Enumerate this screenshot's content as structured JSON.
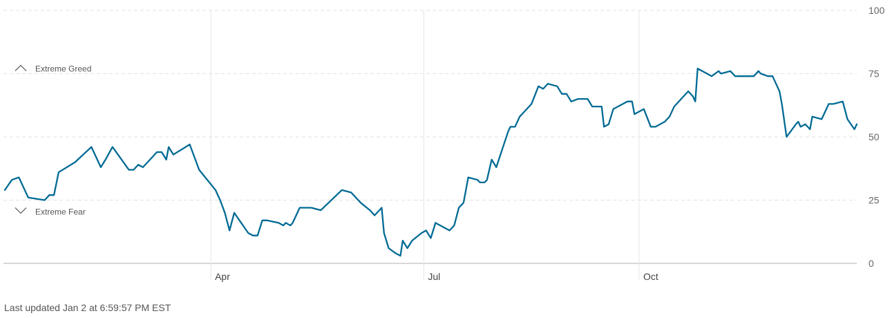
{
  "colors": {
    "line": "#006a94",
    "grid": "#e2e2e2",
    "vgrid": "#e6e6e6",
    "baseline": "#d8d8d8"
  },
  "footer": {
    "updated": "Last updated Jan 2 at 6:59:57 PM EST"
  },
  "chart_data": {
    "type": "line",
    "title": "",
    "xlabel": "",
    "ylabel": "",
    "ylim": [
      0,
      100
    ],
    "yticks": [
      0,
      25,
      50,
      75,
      100
    ],
    "y_axis_side": "right",
    "grid": "horizontal dashed, vertical at month labels",
    "xticks": [
      {
        "label": "Apr",
        "date": "2023-04-01"
      },
      {
        "label": "Jul",
        "date": "2023-07-01"
      },
      {
        "label": "Oct",
        "date": "2023-10-01"
      }
    ],
    "x_range": [
      "2023-01-03",
      "2024-01-02"
    ],
    "annotations": [
      {
        "label": "Extreme Greed",
        "icon": "chevron-up-icon",
        "value": 75
      },
      {
        "label": "Extreme Fear",
        "icon": "chevron-down-icon",
        "value": 25
      }
    ],
    "series": [
      {
        "values": [
          [
            "2023-01-03",
            29
          ],
          [
            "2023-01-06",
            33
          ],
          [
            "2023-01-09",
            34
          ],
          [
            "2023-01-13",
            26
          ],
          [
            "2023-01-20",
            25
          ],
          [
            "2023-01-22",
            27
          ],
          [
            "2023-01-24",
            27
          ],
          [
            "2023-01-26",
            36
          ],
          [
            "2023-02-02",
            40
          ],
          [
            "2023-02-09",
            46
          ],
          [
            "2023-02-13",
            38
          ],
          [
            "2023-02-15",
            41
          ],
          [
            "2023-02-18",
            46
          ],
          [
            "2023-02-25",
            37
          ],
          [
            "2023-02-27",
            37
          ],
          [
            "2023-03-01",
            39
          ],
          [
            "2023-03-03",
            38
          ],
          [
            "2023-03-09",
            44
          ],
          [
            "2023-03-11",
            44
          ],
          [
            "2023-03-13",
            41
          ],
          [
            "2023-03-14",
            46
          ],
          [
            "2023-03-16",
            43
          ],
          [
            "2023-03-23",
            47
          ],
          [
            "2023-03-27",
            37
          ],
          [
            "2023-04-03",
            29
          ],
          [
            "2023-04-05",
            25
          ],
          [
            "2023-04-07",
            20
          ],
          [
            "2023-04-09",
            13
          ],
          [
            "2023-04-11",
            20
          ],
          [
            "2023-04-17",
            12
          ],
          [
            "2023-04-19",
            11
          ],
          [
            "2023-04-21",
            11
          ],
          [
            "2023-04-23",
            17
          ],
          [
            "2023-04-25",
            17
          ],
          [
            "2023-04-30",
            16
          ],
          [
            "2023-05-02",
            15
          ],
          [
            "2023-05-03",
            16
          ],
          [
            "2023-05-05",
            15
          ],
          [
            "2023-05-06",
            16
          ],
          [
            "2023-05-09",
            22
          ],
          [
            "2023-05-14",
            22
          ],
          [
            "2023-05-18",
            21
          ],
          [
            "2023-05-27",
            29
          ],
          [
            "2023-05-31",
            28
          ],
          [
            "2023-06-04",
            24
          ],
          [
            "2023-06-08",
            21
          ],
          [
            "2023-06-10",
            19
          ],
          [
            "2023-06-13",
            22
          ],
          [
            "2023-06-14",
            12
          ],
          [
            "2023-06-16",
            6
          ],
          [
            "2023-06-19",
            4
          ],
          [
            "2023-06-21",
            3
          ],
          [
            "2023-06-22",
            9
          ],
          [
            "2023-06-24",
            6
          ],
          [
            "2023-06-26",
            9
          ],
          [
            "2023-06-30",
            12
          ],
          [
            "2023-07-02",
            13
          ],
          [
            "2023-07-04",
            10
          ],
          [
            "2023-07-06",
            16
          ],
          [
            "2023-07-10",
            14
          ],
          [
            "2023-07-12",
            13
          ],
          [
            "2023-07-14",
            15
          ],
          [
            "2023-07-16",
            22
          ],
          [
            "2023-07-18",
            24
          ],
          [
            "2023-07-20",
            34
          ],
          [
            "2023-07-24",
            33
          ],
          [
            "2023-07-25",
            32
          ],
          [
            "2023-07-27",
            32
          ],
          [
            "2023-07-28",
            33
          ],
          [
            "2023-07-30",
            41
          ],
          [
            "2023-08-01",
            38
          ],
          [
            "2023-08-06",
            52
          ],
          [
            "2023-08-07",
            54
          ],
          [
            "2023-08-09",
            54
          ],
          [
            "2023-08-11",
            58
          ],
          [
            "2023-08-13",
            60
          ],
          [
            "2023-08-16",
            63
          ],
          [
            "2023-08-19",
            70
          ],
          [
            "2023-08-21",
            69
          ],
          [
            "2023-08-23",
            71
          ],
          [
            "2023-08-27",
            70
          ],
          [
            "2023-08-29",
            67
          ],
          [
            "2023-08-31",
            67
          ],
          [
            "2023-09-02",
            64
          ],
          [
            "2023-09-05",
            65
          ],
          [
            "2023-09-07",
            65
          ],
          [
            "2023-09-09",
            65
          ],
          [
            "2023-09-11",
            62
          ],
          [
            "2023-09-15",
            62
          ],
          [
            "2023-09-16",
            54
          ],
          [
            "2023-09-18",
            55
          ],
          [
            "2023-09-20",
            61
          ],
          [
            "2023-09-26",
            64
          ],
          [
            "2023-09-28",
            64
          ],
          [
            "2023-09-29",
            59
          ],
          [
            "2023-10-03",
            61
          ],
          [
            "2023-10-06",
            54
          ],
          [
            "2023-10-08",
            54
          ],
          [
            "2023-10-12",
            56
          ],
          [
            "2023-10-14",
            58
          ],
          [
            "2023-10-16",
            62
          ],
          [
            "2023-10-20",
            66
          ],
          [
            "2023-10-22",
            68
          ],
          [
            "2023-10-24",
            66
          ],
          [
            "2023-10-25",
            64
          ],
          [
            "2023-10-26",
            77
          ],
          [
            "2023-10-28",
            76
          ],
          [
            "2023-11-01",
            74
          ],
          [
            "2023-11-04",
            76
          ],
          [
            "2023-11-05",
            75
          ],
          [
            "2023-11-09",
            76
          ],
          [
            "2023-11-11",
            74
          ],
          [
            "2023-11-15",
            74
          ],
          [
            "2023-11-19",
            74
          ],
          [
            "2023-11-21",
            76
          ],
          [
            "2023-11-22",
            75
          ],
          [
            "2023-11-25",
            74
          ],
          [
            "2023-11-27",
            74
          ],
          [
            "2023-11-30",
            68
          ],
          [
            "2023-12-01",
            63
          ],
          [
            "2023-12-03",
            50
          ],
          [
            "2023-12-07",
            55
          ],
          [
            "2023-12-08",
            56
          ],
          [
            "2023-12-09",
            54
          ],
          [
            "2023-12-11",
            55
          ],
          [
            "2023-12-13",
            53
          ],
          [
            "2023-12-14",
            58
          ],
          [
            "2023-12-18",
            57
          ],
          [
            "2023-12-21",
            63
          ],
          [
            "2023-12-23",
            63
          ],
          [
            "2023-12-27",
            64
          ],
          [
            "2023-12-29",
            57
          ],
          [
            "2024-01-01",
            53
          ],
          [
            "2024-01-02",
            55
          ]
        ]
      }
    ]
  }
}
